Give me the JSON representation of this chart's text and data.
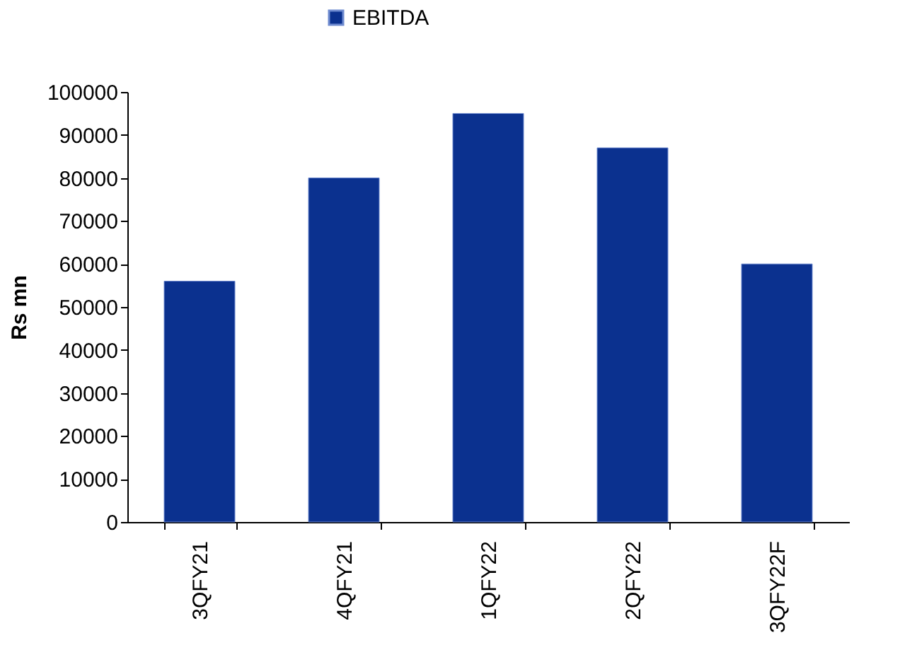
{
  "chart_data": {
    "type": "bar",
    "ylabel": "Rs mn",
    "categories": [
      "3QFY21",
      "4QFY21",
      "1QFY22",
      "2QFY22",
      "3QFY22F"
    ],
    "series": [
      {
        "name": "EBITDA",
        "color": "#0b318f",
        "values": [
          56000,
          80000,
          95000,
          87000,
          60000
        ]
      }
    ],
    "ylim": [
      0,
      100000
    ],
    "yticks": [
      0,
      10000,
      20000,
      30000,
      40000,
      50000,
      60000,
      70000,
      80000,
      90000,
      100000
    ],
    "grid": false,
    "legend": "top"
  }
}
